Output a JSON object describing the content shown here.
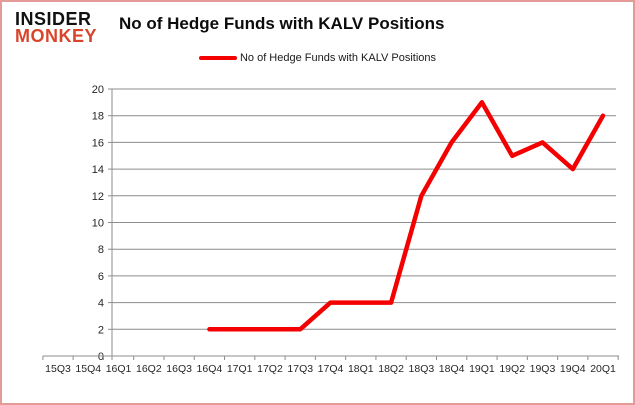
{
  "header": {
    "logo_line1": "INSIDER",
    "logo_line2": "MONKEY",
    "title": "No of Hedge Funds with KALV Positions"
  },
  "legend": {
    "label": "No of Hedge Funds with KALV Positions"
  },
  "colors": {
    "line": "#f40000",
    "logo_monkey": "#d9452c",
    "logo_insider": "#111111",
    "grid": "#8c8c8c",
    "border": "#e59a9a",
    "background": "#ffffff"
  },
  "chart_data": {
    "type": "line",
    "title": "No of Hedge Funds with KALV Positions",
    "categories": [
      "15Q3",
      "15Q4",
      "16Q1",
      "16Q2",
      "16Q3",
      "16Q4",
      "17Q1",
      "17Q2",
      "17Q3",
      "17Q4",
      "18Q1",
      "18Q2",
      "18Q3",
      "18Q4",
      "19Q1",
      "19Q2",
      "19Q3",
      "19Q4",
      "20Q1"
    ],
    "series": [
      {
        "name": "No of Hedge Funds with KALV Positions",
        "values": [
          null,
          null,
          null,
          null,
          null,
          2,
          2,
          2,
          2,
          4,
          4,
          4,
          12,
          16,
          19,
          15,
          16,
          14,
          18
        ]
      }
    ],
    "ylim": [
      0,
      20
    ],
    "ytick_step": 2,
    "grid": true,
    "legend_position": "top-center",
    "xlabel": "",
    "ylabel": ""
  }
}
